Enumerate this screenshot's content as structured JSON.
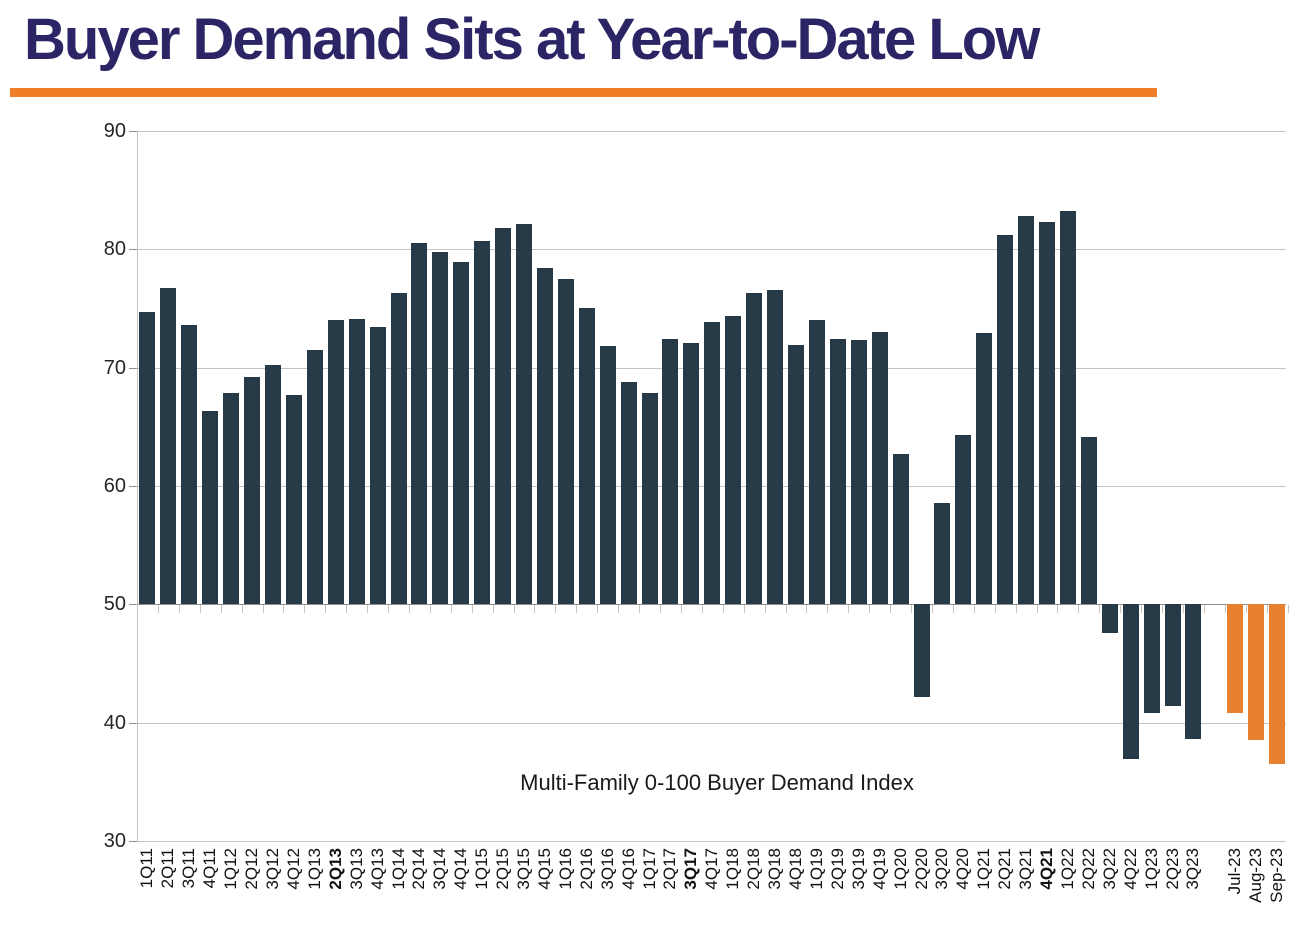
{
  "title": "Buyer Demand Sits at Year-to-Date Low",
  "colors": {
    "title_text": "#2b2566",
    "title_rule": "#f07d28",
    "bar_dark": "#273a47",
    "bar_orange": "#e8802e",
    "gridline": "#c4c4c4",
    "baseline_line": "#8f8f8f",
    "category_tick": "#c9c2b6",
    "axis_text": "#262626"
  },
  "chart_data": {
    "type": "bar",
    "title": "Buyer Demand Sits at Year-to-Date Low",
    "inner_label": "Multi-Family 0-100 Buyer Demand Index",
    "baseline": 50,
    "ylim": [
      30,
      90
    ],
    "yticks": [
      30,
      40,
      50,
      60,
      70,
      80,
      90
    ],
    "grid": true,
    "legend": "none",
    "categories": [
      "1Q11",
      "2Q11",
      "3Q11",
      "4Q11",
      "1Q12",
      "2Q12",
      "3Q12",
      "4Q12",
      "1Q13",
      "2Q13",
      "3Q13",
      "4Q13",
      "1Q14",
      "2Q14",
      "3Q14",
      "4Q14",
      "1Q15",
      "2Q15",
      "3Q15",
      "4Q15",
      "1Q16",
      "2Q16",
      "3Q16",
      "4Q16",
      "1Q17",
      "2Q17",
      "3Q17",
      "4Q17",
      "1Q18",
      "2Q18",
      "3Q18",
      "4Q18",
      "1Q19",
      "2Q19",
      "3Q19",
      "4Q19",
      "1Q20",
      "2Q20",
      "3Q20",
      "4Q20",
      "1Q21",
      "2Q21",
      "3Q21",
      "4Q21",
      "1Q22",
      "2Q22",
      "3Q22",
      "4Q22",
      "1Q23",
      "2Q23",
      "3Q23",
      "Jul-23",
      "Aug-23",
      "Sep-23"
    ],
    "values": [
      74.7,
      76.7,
      73.6,
      66.3,
      67.9,
      69.2,
      70.2,
      67.7,
      71.5,
      74.0,
      74.1,
      73.4,
      76.3,
      80.5,
      79.8,
      78.9,
      80.7,
      81.8,
      82.1,
      78.4,
      77.5,
      75.0,
      71.8,
      68.8,
      67.9,
      72.4,
      72.1,
      73.9,
      74.4,
      76.3,
      76.6,
      71.9,
      74.0,
      72.4,
      72.3,
      73.0,
      62.7,
      42.2,
      58.6,
      64.3,
      72.9,
      81.2,
      82.8,
      82.3,
      83.2,
      64.1,
      47.6,
      36.9,
      40.8,
      41.4,
      38.6,
      40.8,
      38.5,
      36.5
    ],
    "bold_categories": [
      "2Q13",
      "3Q17",
      "4Q21"
    ],
    "orange_categories": [
      "Jul-23",
      "Aug-23",
      "Sep-23"
    ],
    "gap_before": "Jul-23"
  }
}
